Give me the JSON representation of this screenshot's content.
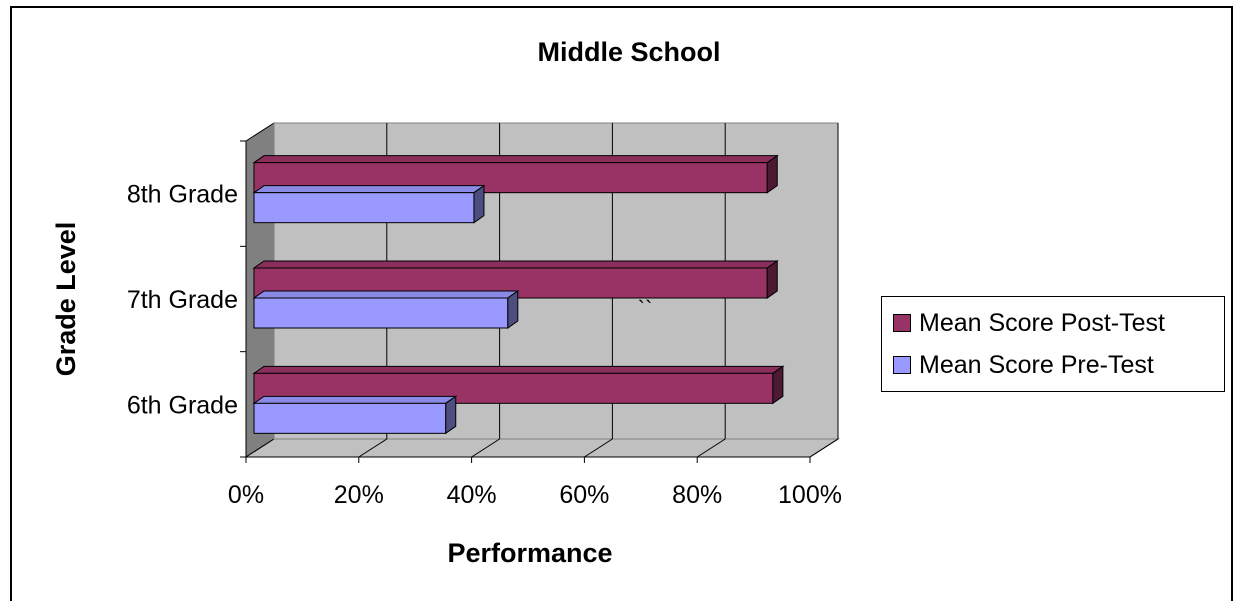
{
  "chart_data": {
    "type": "bar",
    "orientation": "horizontal",
    "style": "3d",
    "title": "Middle School",
    "xlabel": "Performance",
    "ylabel": "Grade Level",
    "categories": [
      "6th Grade",
      "7th Grade",
      "8th Grade"
    ],
    "x_ticks": [
      "0%",
      "20%",
      "40%",
      "60%",
      "80%",
      "100%"
    ],
    "xlim": [
      0,
      100
    ],
    "unit": "%",
    "grid": true,
    "legend_position": "right",
    "annotation": "``",
    "series": [
      {
        "name": "Mean Score Post-Test",
        "values": [
          92,
          91,
          91
        ],
        "color": "#993366"
      },
      {
        "name": "Mean Score Pre-Test",
        "values": [
          34,
          45,
          39
        ],
        "color": "#9999ff"
      }
    ],
    "colors": {
      "wall": "#c0c0c0",
      "side_wall": "#808080",
      "floor": "#c0c0c0"
    }
  }
}
